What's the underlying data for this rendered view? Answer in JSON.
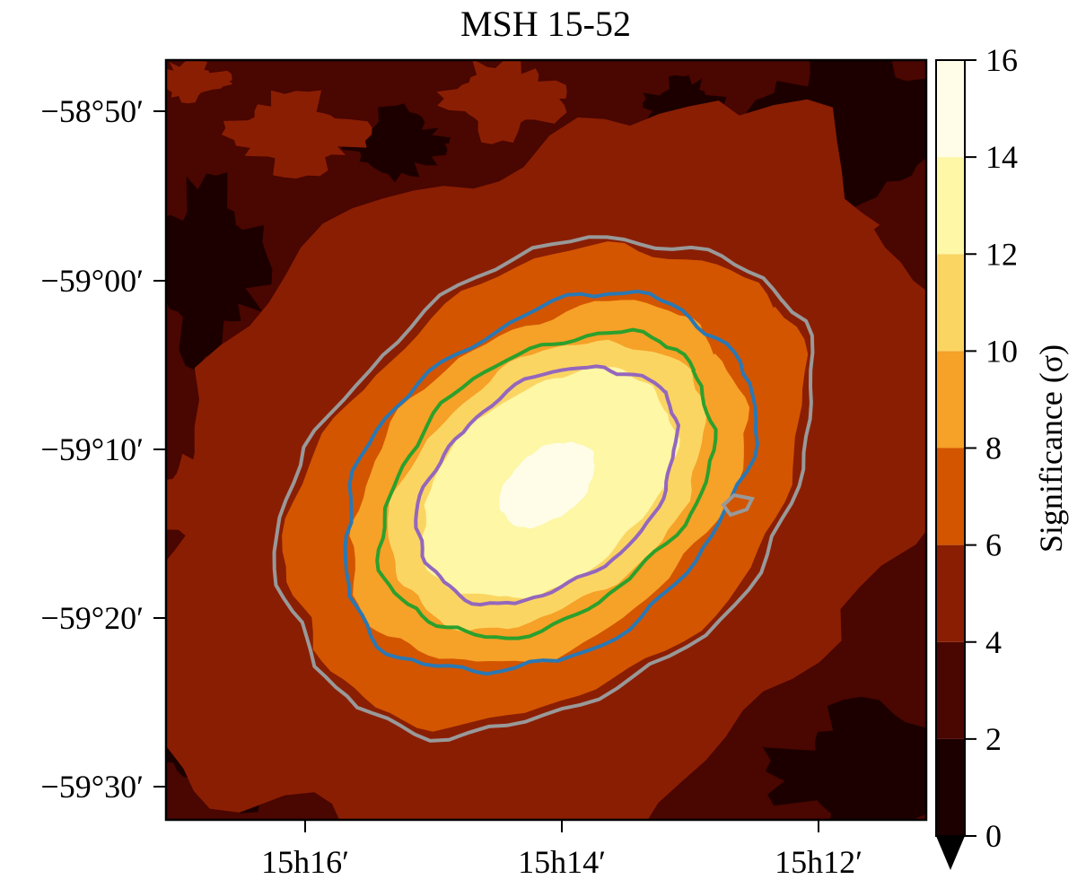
{
  "chart_data": {
    "type": "heatmap",
    "title": "MSH 15-52",
    "x_ticks": [
      "15h16′",
      "15h14′",
      "15h12′"
    ],
    "y_ticks": [
      "−58°50′",
      "−59°00′",
      "−59°10′",
      "−59°20′",
      "−59°30′"
    ],
    "colorbar": {
      "label": "Significance (σ)",
      "levels": [
        0,
        2,
        4,
        6,
        8,
        10,
        12,
        14,
        16
      ],
      "tick_labels": [
        "0",
        "2",
        "4",
        "6",
        "8",
        "10",
        "12",
        "14",
        "16"
      ],
      "colors": [
        "#1c0000",
        "#4a0600",
        "#8a1e03",
        "#d35500",
        "#f6a128",
        "#fbd562",
        "#fdf7a6",
        "#fffde8"
      ],
      "extend": "min"
    },
    "source": {
      "center_ra": "15h13.9′",
      "center_dec": "−59°12′",
      "position_angle_deg": -38,
      "levels": [
        {
          "min": 4,
          "color": "#8a1e03",
          "a_arcmin": 26,
          "b_arcmin": 19
        },
        {
          "min": 6,
          "color": "#d35500",
          "a_arcmin": 17,
          "b_arcmin": 12
        },
        {
          "min": 8,
          "color": "#f6a128",
          "a_arcmin": 13,
          "b_arcmin": 9
        },
        {
          "min": 10,
          "color": "#fbd562",
          "a_arcmin": 10.5,
          "b_arcmin": 7
        },
        {
          "min": 12,
          "color": "#fdf7a6",
          "a_arcmin": 8.5,
          "b_arcmin": 5.5
        },
        {
          "min": 14,
          "color": "#fffde8",
          "a_arcmin": 3.2,
          "b_arcmin": 2
        }
      ],
      "contours": [
        {
          "color": "#999999",
          "a_arcmin": 17.5,
          "b_arcmin": 12.5
        },
        {
          "color": "#2a78b4",
          "a_arcmin": 13.5,
          "b_arcmin": 9.5
        },
        {
          "color": "#2ca02c",
          "a_arcmin": 11,
          "b_arcmin": 7.5
        },
        {
          "color": "#9467bd",
          "a_arcmin": 8.6,
          "b_arcmin": 5.8
        }
      ]
    }
  }
}
